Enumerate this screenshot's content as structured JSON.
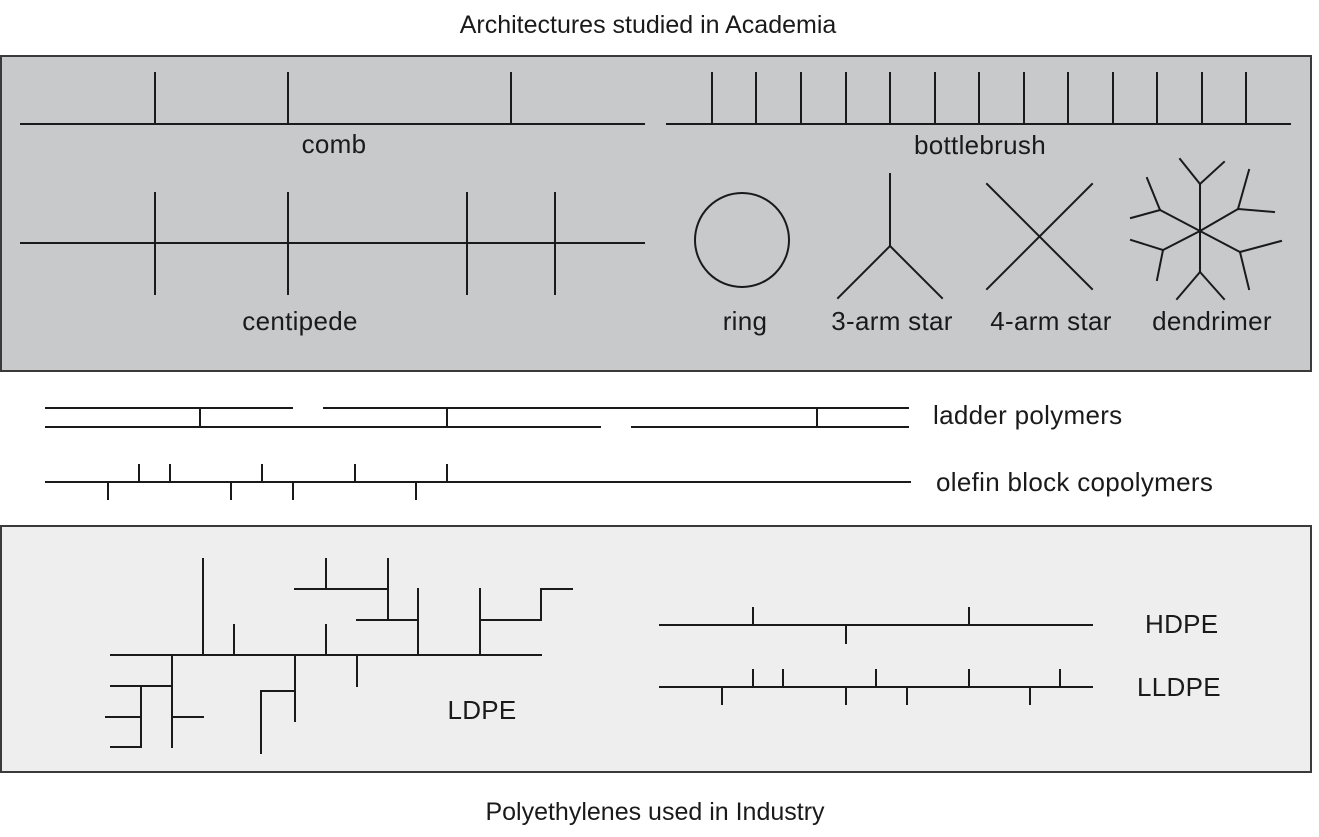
{
  "titles": {
    "academia": "Architectures studied in Academia",
    "industry": "Polyethylenes used in Industry"
  },
  "academia_labels": {
    "comb": "comb",
    "bottlebrush": "bottlebrush",
    "centipede": "centipede",
    "ring": "ring",
    "star3": "3-arm star",
    "star4": "4-arm star",
    "dendrimer": "dendrimer"
  },
  "middle_labels": {
    "ladder": "ladder polymers",
    "olefin": "olefin block copolymers"
  },
  "industry_labels": {
    "ldpe": "LDPE",
    "hdpe": "HDPE",
    "lldpe": "LLDPE"
  },
  "colors": {
    "academia_panel": "#c8c9cb",
    "industry_panel": "#eeeeee",
    "line": "#1a1a1a"
  }
}
